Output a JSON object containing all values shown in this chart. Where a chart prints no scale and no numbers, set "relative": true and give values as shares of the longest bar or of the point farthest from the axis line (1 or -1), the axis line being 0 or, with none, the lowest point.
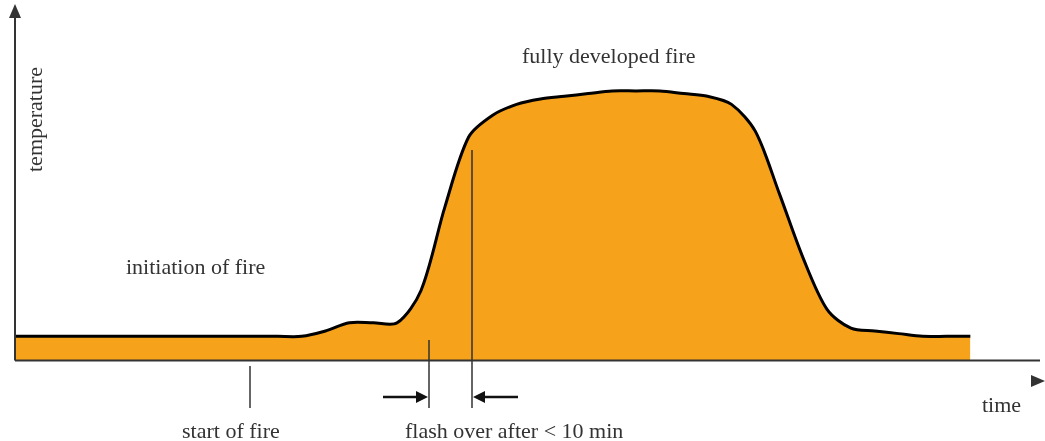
{
  "chart_data": {
    "type": "area",
    "relative": true,
    "xlabel": "time",
    "ylabel": "temperature",
    "annotations": [
      "initiation of fire",
      "fully developed fire",
      "start of fire",
      "flash over after < 10 min"
    ],
    "categories": [
      null,
      null,
      null,
      null,
      null,
      null,
      null,
      null,
      null,
      null,
      null,
      null,
      null,
      null,
      null,
      null,
      null,
      null,
      null,
      null,
      null,
      null,
      null,
      null,
      null,
      null,
      null,
      null,
      null,
      null,
      null,
      null,
      null,
      null,
      null,
      null,
      null,
      null,
      null,
      null,
      null,
      null,
      null,
      null
    ],
    "series": [
      {
        "color": "#f7a21b",
        "values": [
          0.09,
          0.09,
          0.09,
          0.09,
          0.09,
          0.09,
          0.09,
          0.09,
          0.09,
          0.09,
          0.09,
          0.09,
          0.09,
          0.11,
          0.14,
          0.14,
          0.14,
          0.26,
          0.57,
          0.83,
          0.91,
          0.95,
          0.97,
          0.98,
          0.99,
          1,
          1,
          1,
          0.99,
          0.98,
          0.95,
          0.85,
          0.62,
          0.38,
          0.19,
          0.12,
          0.11,
          0.1,
          0.09,
          0.09,
          0.09,
          null,
          null,
          null
        ]
      }
    ],
    "legend": false,
    "grid": false
  }
}
